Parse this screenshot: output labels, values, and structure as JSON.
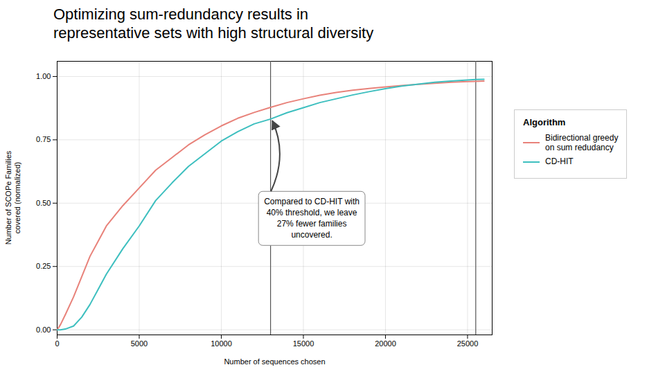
{
  "chart_data": {
    "type": "line",
    "title": "Optimizing sum-redundancy results in\nrepresentative sets with high structural diversity",
    "xlabel": "Number of sequences chosen",
    "ylabel": "Number of SCOPe Families\ncovered (normalized)",
    "xlim": [
      0,
      26500
    ],
    "ylim": [
      -0.02,
      1.06
    ],
    "xticks": [
      0,
      5000,
      10000,
      15000,
      20000,
      25000
    ],
    "yticks": [
      {
        "value": 0.0,
        "label": "0.00"
      },
      0.25,
      {
        "value": 0.5,
        "label": "0.50"
      },
      0.75,
      {
        "value": 1.0,
        "label": "1.00"
      }
    ],
    "grid": true,
    "legend_title": "Algorithm",
    "vlines": [
      13000,
      25500
    ],
    "annotation": {
      "text": "Compared to CD-HIT with\n40% threshold, we leave\n27% fewer families\nuncovered.",
      "x": 13000,
      "y": 0.835
    },
    "x": [
      0,
      200,
      500,
      1000,
      1500,
      2000,
      2500,
      3000,
      4000,
      5000,
      6000,
      7000,
      8000,
      9000,
      10000,
      11000,
      12000,
      13000,
      14000,
      15000,
      16000,
      17000,
      18000,
      19000,
      20000,
      21000,
      22000,
      23000,
      24000,
      25000,
      25500,
      26000
    ],
    "series": [
      {
        "name": "Bidirectional greedy\non sum redudancy",
        "color": "#E8827A",
        "values": [
          0.0,
          0.02,
          0.06,
          0.13,
          0.21,
          0.29,
          0.35,
          0.41,
          0.49,
          0.56,
          0.63,
          0.68,
          0.73,
          0.77,
          0.805,
          0.835,
          0.858,
          0.878,
          0.897,
          0.912,
          0.926,
          0.937,
          0.946,
          0.953,
          0.959,
          0.964,
          0.969,
          0.973,
          0.977,
          0.98,
          0.981,
          0.982
        ]
      },
      {
        "name": "CD-HIT",
        "color": "#3DBFBF",
        "values": [
          0.0,
          0.0,
          0.003,
          0.015,
          0.05,
          0.1,
          0.16,
          0.22,
          0.32,
          0.41,
          0.51,
          0.58,
          0.645,
          0.695,
          0.745,
          0.782,
          0.813,
          0.832,
          0.857,
          0.877,
          0.897,
          0.912,
          0.927,
          0.94,
          0.952,
          0.962,
          0.97,
          0.977,
          0.982,
          0.986,
          0.988,
          0.989
        ]
      }
    ]
  }
}
